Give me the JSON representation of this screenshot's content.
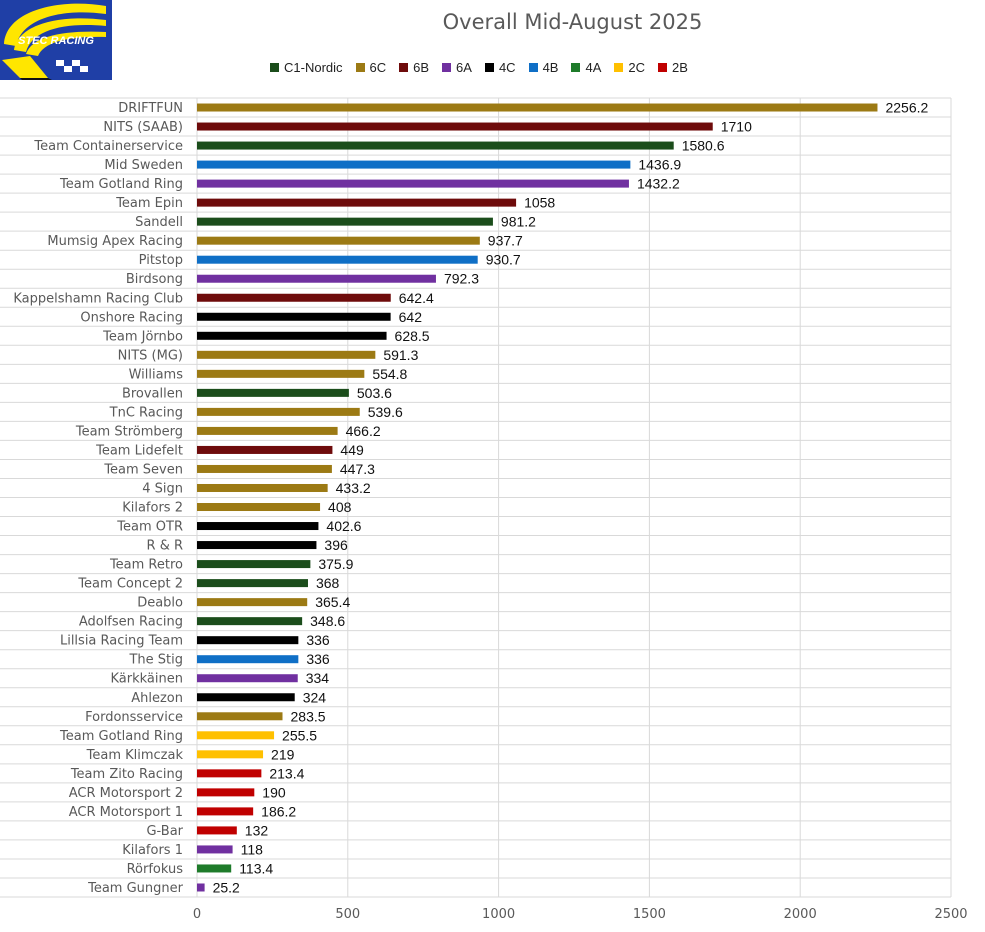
{
  "logo": {
    "text": "STEC RACING",
    "colors": {
      "background": "#1f3fa6",
      "stripe": "#ffe600"
    }
  },
  "chart_data": {
    "type": "bar",
    "orientation": "horizontal",
    "title": "Overall Mid-August 2025",
    "xlim": [
      0,
      2500
    ],
    "xticks": [
      0,
      500,
      1000,
      1500,
      2000,
      2500
    ],
    "grid": true,
    "legend_position": "top",
    "classes": [
      {
        "name": "C1-Nordic",
        "color": "#1b4d1b"
      },
      {
        "name": "6C",
        "color": "#9c7a14"
      },
      {
        "name": "6B",
        "color": "#6e0b0b"
      },
      {
        "name": "6A",
        "color": "#7030a0"
      },
      {
        "name": "4C",
        "color": "#000000"
      },
      {
        "name": "4B",
        "color": "#0f6fc6"
      },
      {
        "name": "4A",
        "color": "#1e7b2a"
      },
      {
        "name": "2C",
        "color": "#ffc000"
      },
      {
        "name": "2B",
        "color": "#c00000"
      }
    ],
    "bars": [
      {
        "team": "DRIFTFUN",
        "value": 2256.2,
        "label": "2256.2",
        "class": "6C"
      },
      {
        "team": "NITS (SAAB)",
        "value": 1710,
        "label": "1710",
        "class": "6B"
      },
      {
        "team": "Team Containerservice",
        "value": 1580.6,
        "label": "1580.6",
        "class": "C1-Nordic"
      },
      {
        "team": "Mid Sweden",
        "value": 1436.9,
        "label": "1436.9",
        "class": "4B"
      },
      {
        "team": "Team Gotland Ring",
        "value": 1432.2,
        "label": "1432.2",
        "class": "6A"
      },
      {
        "team": "Team Epin",
        "value": 1058,
        "label": "1058",
        "class": "6B"
      },
      {
        "team": "Sandell",
        "value": 981.2,
        "label": "981.2",
        "class": "C1-Nordic"
      },
      {
        "team": "Mumsig Apex Racing",
        "value": 937.7,
        "label": "937.7",
        "class": "6C"
      },
      {
        "team": "Pitstop",
        "value": 930.7,
        "label": "930.7",
        "class": "4B"
      },
      {
        "team": "Birdsong",
        "value": 792.3,
        "label": "792.3",
        "class": "6A"
      },
      {
        "team": "Kappelshamn Racing Club",
        "value": 642.4,
        "label": "642.4",
        "class": "6B"
      },
      {
        "team": "Onshore Racing",
        "value": 642,
        "label": "642",
        "class": "4C"
      },
      {
        "team": "Team Jörnbo",
        "value": 628.5,
        "label": "628.5",
        "class": "4C"
      },
      {
        "team": "NITS (MG)",
        "value": 591.3,
        "label": "591.3",
        "class": "6C"
      },
      {
        "team": "Williams",
        "value": 554.8,
        "label": "554.8",
        "class": "6C"
      },
      {
        "team": "Brovallen",
        "value": 503.6,
        "label": "503.6",
        "class": "C1-Nordic"
      },
      {
        "team": "TnC Racing",
        "value": 539.6,
        "label": "539.6",
        "class": "6C"
      },
      {
        "team": "Team Strömberg",
        "value": 466.2,
        "label": "466.2",
        "class": "6C"
      },
      {
        "team": "Team Lidefelt",
        "value": 449,
        "label": "449",
        "class": "6B"
      },
      {
        "team": "Team Seven",
        "value": 447.3,
        "label": "447.3",
        "class": "6C"
      },
      {
        "team": "4 Sign",
        "value": 433.2,
        "label": "433.2",
        "class": "6C"
      },
      {
        "team": "Kilafors 2",
        "value": 408,
        "label": "408",
        "class": "6C"
      },
      {
        "team": "Team OTR",
        "value": 402.6,
        "label": "402.6",
        "class": "4C"
      },
      {
        "team": "R & R",
        "value": 396,
        "label": "396",
        "class": "4C"
      },
      {
        "team": "Team Retro",
        "value": 375.9,
        "label": "375.9",
        "class": "C1-Nordic"
      },
      {
        "team": "Team Concept 2",
        "value": 368,
        "label": "368",
        "class": "C1-Nordic"
      },
      {
        "team": "Deablo",
        "value": 365.4,
        "label": "365.4",
        "class": "6C"
      },
      {
        "team": "Adolfsen Racing",
        "value": 348.6,
        "label": "348.6",
        "class": "C1-Nordic"
      },
      {
        "team": "Lillsia Racing Team",
        "value": 336,
        "label": "336",
        "class": "4C"
      },
      {
        "team": "The Stig",
        "value": 336,
        "label": "336",
        "class": "4B"
      },
      {
        "team": "Kärkkäinen",
        "value": 334,
        "label": "334",
        "class": "6A"
      },
      {
        "team": "Ahlezon",
        "value": 324,
        "label": "324",
        "class": "4C"
      },
      {
        "team": "Fordonsservice",
        "value": 283.5,
        "label": "283.5",
        "class": "6C"
      },
      {
        "team": "Team Gotland Ring",
        "value": 255.5,
        "label": "255.5",
        "class": "2C"
      },
      {
        "team": "Team Klimczak",
        "value": 219,
        "label": "219",
        "class": "2C"
      },
      {
        "team": "Team Zito Racing",
        "value": 213.4,
        "label": "213.4",
        "class": "2B"
      },
      {
        "team": "ACR Motorsport 2",
        "value": 190,
        "label": "190",
        "class": "2B"
      },
      {
        "team": "ACR Motorsport 1",
        "value": 186.2,
        "label": "186.2",
        "class": "2B"
      },
      {
        "team": "G-Bar",
        "value": 132,
        "label": "132",
        "class": "2B"
      },
      {
        "team": "Kilafors 1",
        "value": 118,
        "label": "118",
        "class": "6A"
      },
      {
        "team": "Rörfokus",
        "value": 113.4,
        "label": "113.4",
        "class": "4A"
      },
      {
        "team": "Team Gungner",
        "value": 25.2,
        "label": "25.2",
        "class": "6A"
      }
    ]
  }
}
